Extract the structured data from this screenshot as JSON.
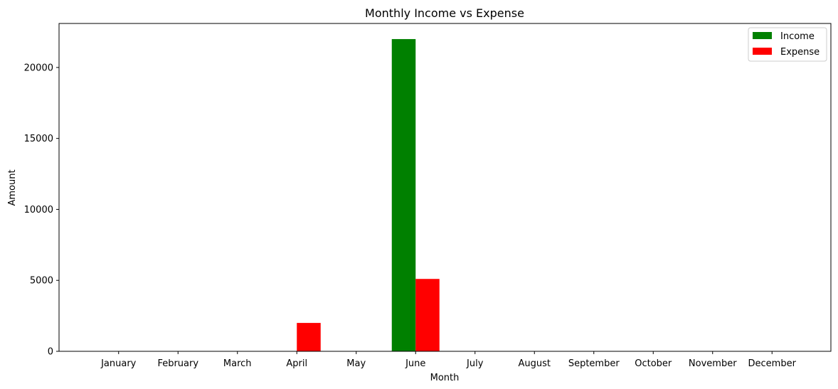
{
  "chart_data": {
    "type": "bar",
    "title": "Monthly Income vs Expense",
    "xlabel": "Month",
    "ylabel": "Amount",
    "categories": [
      "January",
      "February",
      "March",
      "April",
      "May",
      "June",
      "July",
      "August",
      "September",
      "October",
      "November",
      "December"
    ],
    "series": [
      {
        "name": "Income",
        "color": "#008000",
        "values": [
          0,
          0,
          0,
          0,
          0,
          22000,
          0,
          0,
          0,
          0,
          0,
          0
        ]
      },
      {
        "name": "Expense",
        "color": "#ff0000",
        "values": [
          0,
          0,
          0,
          2000,
          0,
          5100,
          0,
          0,
          0,
          0,
          0,
          0
        ]
      }
    ],
    "ylim": [
      0,
      23100
    ],
    "yticks": [
      0,
      5000,
      10000,
      15000,
      20000
    ],
    "grid": false,
    "legend_position": "top-right"
  }
}
